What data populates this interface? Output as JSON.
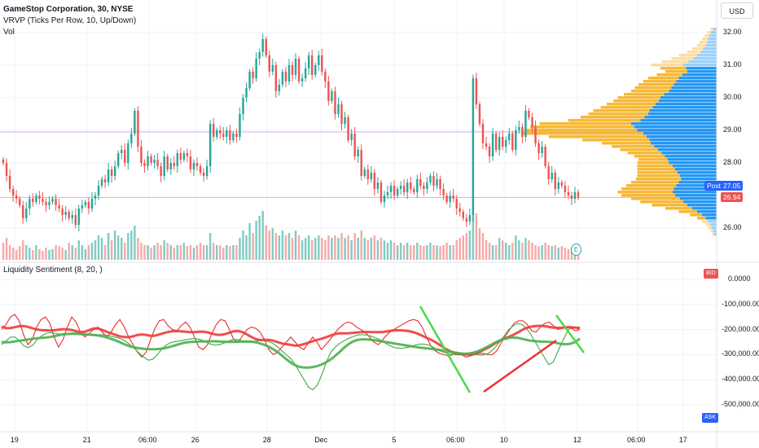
{
  "legend": {
    "symbol": "GameStop Corporation, 30, NYSE",
    "vrvp": "VRVP (Ticks Per Row, 10, Up/Down)",
    "vol": "Vol",
    "indicator": "Liquidity Sentiment (8, 20, )"
  },
  "currency_button": "USD",
  "price_tags": {
    "post_label": "Post",
    "post_value": "27.05",
    "last_value": "26.94"
  },
  "indicator_tags": {
    "bid": "BID",
    "ask": "ASK"
  },
  "earnings_icon": "E",
  "colors": {
    "up": "#26a69a",
    "down": "#ef5350",
    "vol_up": "#80cbc4",
    "vol_down": "#f7a9a7",
    "vp_up": "#2196f3",
    "vp_down": "#f7b733",
    "hline": "#e040fb",
    "fast_line": "#ef3a3a",
    "slow_line": "#4caf50",
    "trend_green": "#4cd94c",
    "trend_red": "#ef2f2f"
  },
  "chart_data": [
    {
      "type": "candlestick",
      "title": "GameStop Corporation, 30, NYSE",
      "ylim": [
        25.5,
        32.2
      ],
      "y_ticks": [
        "32.00",
        "31.00",
        "30.00",
        "29.00",
        "28.00",
        "26.00"
      ],
      "x_ticks": [
        "19",
        "21",
        "06:00",
        "26",
        "28",
        "Dec",
        "5",
        "06:00",
        "10",
        "12",
        "06:00",
        "17"
      ],
      "horizontal_lines": [
        28.95,
        26.94
      ],
      "close": [
        28.0,
        27.6,
        27.2,
        27.0,
        26.9,
        26.7,
        26.3,
        26.6,
        26.9,
        26.8,
        27.0,
        26.9,
        26.8,
        26.7,
        26.8,
        26.9,
        26.7,
        26.6,
        26.4,
        26.5,
        26.3,
        26.4,
        26.1,
        26.6,
        26.7,
        26.8,
        26.6,
        26.9,
        27.0,
        27.3,
        27.5,
        27.4,
        27.8,
        27.6,
        27.9,
        28.3,
        28.4,
        28.0,
        28.6,
        28.9,
        29.6,
        28.5,
        28.0,
        27.9,
        28.2,
        28.0,
        28.1,
        27.9,
        27.6,
        28.2,
        27.8,
        28.0,
        27.9,
        28.3,
        28.1,
        28.3,
        28.2,
        27.8,
        28.0,
        27.9,
        27.7,
        27.6,
        27.9,
        29.2,
        28.8,
        29.0,
        28.9,
        28.8,
        29.0,
        28.7,
        28.9,
        28.8,
        29.5,
        30.0,
        30.3,
        30.8,
        30.6,
        31.2,
        31.4,
        31.8,
        31.3,
        30.8,
        31.0,
        30.2,
        30.4,
        30.8,
        30.5,
        31.0,
        30.7,
        31.2,
        30.5,
        30.6,
        30.9,
        31.3,
        30.7,
        31.0,
        31.3,
        30.8,
        30.5,
        29.9,
        30.2,
        29.5,
        29.8,
        29.2,
        29.4,
        28.7,
        28.9,
        28.2,
        28.4,
        27.6,
        27.8,
        27.5,
        27.7,
        27.2,
        27.4,
        26.8,
        27.0,
        27.1,
        27.3,
        27.0,
        27.2,
        27.3,
        27.1,
        27.4,
        27.2,
        27.1,
        27.5,
        27.3,
        27.2,
        27.4,
        27.6,
        27.3,
        27.5,
        27.2,
        27.0,
        26.8,
        27.0,
        26.9,
        26.6,
        26.5,
        26.3,
        26.2,
        26.4,
        30.6,
        29.8,
        29.2,
        28.6,
        28.5,
        28.2,
        28.9,
        28.4,
        28.8,
        28.5,
        28.7,
        28.9,
        28.4,
        29.0,
        29.1,
        28.8,
        29.6,
        29.4,
        29.1,
        28.6,
        28.3,
        28.5,
        27.9,
        27.5,
        27.7,
        27.2,
        27.4,
        27.3,
        27.1,
        27.0,
        26.9,
        27.1,
        26.94
      ]
    },
    {
      "type": "bar",
      "name": "Vol",
      "values": [
        0.35,
        0.45,
        0.3,
        0.25,
        0.2,
        0.28,
        0.4,
        0.3,
        0.25,
        0.2,
        0.3,
        0.22,
        0.18,
        0.25,
        0.2,
        0.22,
        0.3,
        0.28,
        0.25,
        0.2,
        0.35,
        0.3,
        0.25,
        0.4,
        0.3,
        0.22,
        0.3,
        0.35,
        0.4,
        0.5,
        0.45,
        0.3,
        0.55,
        0.4,
        0.6,
        0.5,
        0.45,
        0.35,
        0.55,
        0.6,
        0.7,
        0.45,
        0.35,
        0.3,
        0.3,
        0.25,
        0.3,
        0.35,
        0.3,
        0.4,
        0.35,
        0.3,
        0.25,
        0.3,
        0.3,
        0.35,
        0.28,
        0.3,
        0.25,
        0.3,
        0.35,
        0.3,
        0.3,
        0.55,
        0.35,
        0.3,
        0.3,
        0.25,
        0.3,
        0.28,
        0.3,
        0.3,
        0.45,
        0.6,
        0.5,
        0.75,
        0.55,
        0.8,
        0.9,
        1.0,
        0.7,
        0.6,
        0.65,
        0.55,
        0.5,
        0.6,
        0.5,
        0.55,
        0.45,
        0.6,
        0.5,
        0.4,
        0.45,
        0.5,
        0.4,
        0.45,
        0.5,
        0.45,
        0.4,
        0.5,
        0.45,
        0.5,
        0.45,
        0.55,
        0.45,
        0.5,
        0.4,
        0.55,
        0.45,
        0.6,
        0.45,
        0.4,
        0.45,
        0.5,
        0.4,
        0.45,
        0.4,
        0.35,
        0.4,
        0.35,
        0.3,
        0.35,
        0.3,
        0.35,
        0.3,
        0.3,
        0.35,
        0.3,
        0.28,
        0.3,
        0.35,
        0.3,
        0.3,
        0.28,
        0.3,
        0.35,
        0.3,
        0.3,
        0.4,
        0.45,
        0.5,
        0.55,
        0.6,
        1.0,
        0.95,
        0.65,
        0.55,
        0.4,
        0.35,
        0.3,
        0.3,
        0.45,
        0.4,
        0.35,
        0.3,
        0.35,
        0.5,
        0.4,
        0.35,
        0.45,
        0.4,
        0.35,
        0.3,
        0.28,
        0.3,
        0.35,
        0.3,
        0.28,
        0.3,
        0.25,
        0.28,
        0.25,
        0.22,
        0.25,
        0.22,
        0.2
      ]
    },
    {
      "type": "bar",
      "name": "VRVP",
      "orientation": "horizontal",
      "price_levels": [
        32.1,
        32.0,
        31.9,
        31.8,
        31.7,
        31.6,
        31.5,
        31.4,
        31.3,
        31.2,
        31.1,
        31.0,
        30.9,
        30.8,
        30.7,
        30.6,
        30.5,
        30.4,
        30.3,
        30.2,
        30.1,
        30.0,
        29.9,
        29.8,
        29.7,
        29.6,
        29.5,
        29.4,
        29.3,
        29.2,
        29.1,
        29.0,
        28.9,
        28.8,
        28.7,
        28.6,
        28.5,
        28.4,
        28.3,
        28.2,
        28.1,
        28.0,
        27.9,
        27.8,
        27.7,
        27.6,
        27.5,
        27.4,
        27.3,
        27.2,
        27.1,
        27.0,
        26.9,
        26.8,
        26.7,
        26.6,
        26.5,
        26.4,
        26.3,
        26.2,
        26.1,
        26.0,
        25.9,
        25.8
      ],
      "up_volume": [
        6,
        9,
        12,
        14,
        16,
        18,
        22,
        26,
        32,
        38,
        46,
        55,
        50,
        48,
        56,
        62,
        66,
        70,
        74,
        78,
        86,
        92,
        95,
        100,
        105,
        110,
        112,
        118,
        125,
        140,
        135,
        130,
        120,
        115,
        110,
        108,
        102,
        96,
        90,
        85,
        80,
        78,
        72,
        68,
        64,
        60,
        58,
        62,
        66,
        70,
        72,
        68,
        60,
        55,
        48,
        40,
        32,
        24,
        18,
        14,
        10,
        8,
        6,
        4
      ],
      "down_volume": [
        4,
        6,
        8,
        10,
        12,
        14,
        18,
        22,
        30,
        36,
        44,
        52,
        42,
        36,
        42,
        50,
        54,
        58,
        60,
        62,
        66,
        70,
        74,
        80,
        85,
        92,
        98,
        105,
        118,
        150,
        170,
        185,
        200,
        160,
        110,
        80,
        70,
        62,
        56,
        50,
        48,
        52,
        58,
        62,
        66,
        70,
        74,
        78,
        82,
        86,
        90,
        88,
        80,
        70,
        58,
        44,
        30,
        20,
        14,
        10,
        8,
        6,
        4,
        3
      ]
    },
    {
      "type": "line",
      "title": "Liquidity Sentiment (8, 20, )",
      "ylim": [
        -540000,
        30000
      ],
      "y_ticks": [
        "0.0000",
        "-100,000.00",
        "-200,000.00",
        "-300,000.00",
        "-400,000.00",
        "-500,000.00"
      ],
      "series": [
        {
          "values": [
            -200000,
            -180000,
            -150000,
            -140000,
            -165000,
            -220000,
            -260000,
            -240000,
            -190000,
            -160000,
            -150000,
            -175000,
            -230000,
            -270000,
            -240000,
            -190000,
            -150000,
            -170000,
            -210000,
            -230000,
            -215000,
            -200000,
            -190000,
            -210000,
            -230000,
            -210000,
            -180000,
            -160000,
            -190000,
            -230000,
            -260000,
            -290000,
            -310000,
            -290000,
            -240000,
            -195000,
            -165000,
            -160000,
            -185000,
            -200000,
            -205000,
            -185000,
            -170000,
            -190000,
            -230000,
            -270000,
            -280000,
            -260000,
            -215000,
            -180000,
            -160000,
            -165000,
            -200000,
            -240000,
            -250000,
            -225000,
            -200000,
            -190000,
            -195000,
            -210000,
            -240000,
            -280000,
            -300000,
            -290000,
            -270000,
            -250000,
            -230000,
            -250000,
            -270000,
            -280000,
            -255000,
            -230000,
            -250000,
            -280000,
            -260000,
            -240000,
            -215000,
            -195000,
            -180000,
            -170000,
            -175000,
            -190000,
            -200000,
            -210000,
            -230000,
            -250000,
            -260000,
            -240000,
            -220000,
            -205000,
            -195000,
            -185000,
            -175000,
            -165000,
            -160000,
            -165000,
            -190000,
            -230000,
            -265000,
            -285000,
            -295000,
            -300000,
            -305000,
            -300000,
            -290000,
            -300000,
            -310000,
            -305000,
            -300000,
            -295000,
            -295000,
            -300000,
            -300000,
            -285000,
            -255000,
            -225000,
            -200000,
            -175000,
            -165000,
            -165000,
            -180000,
            -205000,
            -210000,
            -190000,
            -175000,
            -170000,
            -185000,
            -200000,
            -195000,
            -190000,
            -195000,
            -205000,
            -200000
          ]
        },
        {
          "values": [
            -260000,
            -245000,
            -230000,
            -230000,
            -245000,
            -265000,
            -272000,
            -262000,
            -240000,
            -225000,
            -215000,
            -212000,
            -215000,
            -218000,
            -217000,
            -215000,
            -214000,
            -214000,
            -217000,
            -220000,
            -222000,
            -222000,
            -220000,
            -221000,
            -224000,
            -228000,
            -232000,
            -238000,
            -248000,
            -262000,
            -278000,
            -295000,
            -310000,
            -322000,
            -318000,
            -300000,
            -278000,
            -262000,
            -252000,
            -248000,
            -245000,
            -242000,
            -238000,
            -236000,
            -237000,
            -242000,
            -250000,
            -258000,
            -262000,
            -260000,
            -254000,
            -246000,
            -240000,
            -240000,
            -244000,
            -248000,
            -248000,
            -246000,
            -244000,
            -244000,
            -247000,
            -255000,
            -268000,
            -285000,
            -300000,
            -315000,
            -340000,
            -370000,
            -400000,
            -430000,
            -440000,
            -420000,
            -380000,
            -330000,
            -290000,
            -270000,
            -255000,
            -245000,
            -235000,
            -228000,
            -222000,
            -220000,
            -222000,
            -226000,
            -232000,
            -240000,
            -250000,
            -262000,
            -270000,
            -274000,
            -275000,
            -272000,
            -268000,
            -262000,
            -258000,
            -258000,
            -262000,
            -270000,
            -280000,
            -288000,
            -294000,
            -298000,
            -300000,
            -301000,
            -301000,
            -300000,
            -300000,
            -301000,
            -302000,
            -298000,
            -288000,
            -270000,
            -248000,
            -225000,
            -200000,
            -185000,
            -175000,
            -180000,
            -195000,
            -220000,
            -250000,
            -280000,
            -310000,
            -340000,
            -330000,
            -290000,
            -250000,
            -215000,
            -190000,
            -190000,
            -190000
          ]
        }
      ]
    }
  ]
}
